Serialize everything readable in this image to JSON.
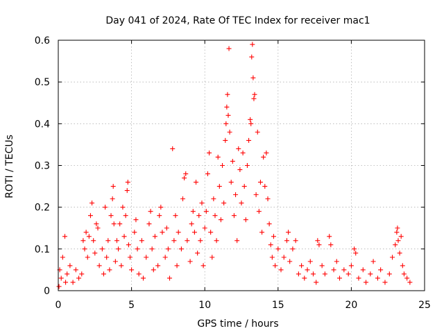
{
  "chart_data": {
    "type": "scatter",
    "title": "Day 041 of 2024, Rate Of TEC Index for receiver mac1",
    "xlabel": "GPS time / hours",
    "ylabel": "ROTI / TECUs",
    "xlim": [
      0,
      25
    ],
    "ylim": [
      0,
      0.6
    ],
    "xticks": [
      0,
      5,
      10,
      15,
      20,
      25
    ],
    "yticks": [
      0,
      0.1,
      0.2,
      0.3,
      0.4,
      0.5,
      0.6
    ],
    "xtick_labels": [
      "0",
      "5",
      "10",
      "15",
      "20",
      "25"
    ],
    "ytick_labels": [
      "0",
      "0.1",
      "0.2",
      "0.3",
      "0.4",
      "0.5",
      "0.6"
    ],
    "grid": true,
    "marker": "+",
    "color": "#ff0000",
    "series": [
      {
        "name": "ROTI",
        "points": [
          [
            0.05,
            0.01
          ],
          [
            0.1,
            0.05
          ],
          [
            0.2,
            0.03
          ],
          [
            0.3,
            0.08
          ],
          [
            0.45,
            0.13
          ],
          [
            0.5,
            0.02
          ],
          [
            0.6,
            0.04
          ],
          [
            0.8,
            0.06
          ],
          [
            1.0,
            0.02
          ],
          [
            1.2,
            0.05
          ],
          [
            1.4,
            0.03
          ],
          [
            1.6,
            0.04
          ],
          [
            1.7,
            0.12
          ],
          [
            1.8,
            0.1
          ],
          [
            1.9,
            0.14
          ],
          [
            2.0,
            0.08
          ],
          [
            2.1,
            0.13
          ],
          [
            2.2,
            0.18
          ],
          [
            2.3,
            0.21
          ],
          [
            2.4,
            0.12
          ],
          [
            2.5,
            0.09
          ],
          [
            2.6,
            0.16
          ],
          [
            2.7,
            0.15
          ],
          [
            2.8,
            0.06
          ],
          [
            3.0,
            0.1
          ],
          [
            3.1,
            0.04
          ],
          [
            3.2,
            0.2
          ],
          [
            3.3,
            0.08
          ],
          [
            3.4,
            0.12
          ],
          [
            3.5,
            0.05
          ],
          [
            3.6,
            0.18
          ],
          [
            3.7,
            0.22
          ],
          [
            3.75,
            0.25
          ],
          [
            3.8,
            0.16
          ],
          [
            3.9,
            0.07
          ],
          [
            4.0,
            0.12
          ],
          [
            4.1,
            0.1
          ],
          [
            4.2,
            0.16
          ],
          [
            4.3,
            0.06
          ],
          [
            4.4,
            0.2
          ],
          [
            4.5,
            0.13
          ],
          [
            4.6,
            0.18
          ],
          [
            4.7,
            0.24
          ],
          [
            4.75,
            0.26
          ],
          [
            4.8,
            0.11
          ],
          [
            4.9,
            0.08
          ],
          [
            5.0,
            0.05
          ],
          [
            5.2,
            0.14
          ],
          [
            5.3,
            0.17
          ],
          [
            5.4,
            0.1
          ],
          [
            5.5,
            0.04
          ],
          [
            5.7,
            0.12
          ],
          [
            5.8,
            0.03
          ],
          [
            6.0,
            0.08
          ],
          [
            6.2,
            0.16
          ],
          [
            6.3,
            0.19
          ],
          [
            6.4,
            0.1
          ],
          [
            6.5,
            0.05
          ],
          [
            6.6,
            0.13
          ],
          [
            6.8,
            0.06
          ],
          [
            6.9,
            0.18
          ],
          [
            7.0,
            0.2
          ],
          [
            7.1,
            0.14
          ],
          [
            7.3,
            0.08
          ],
          [
            7.4,
            0.15
          ],
          [
            7.5,
            0.1
          ],
          [
            7.6,
            0.03
          ],
          [
            7.8,
            0.34
          ],
          [
            7.9,
            0.12
          ],
          [
            8.0,
            0.18
          ],
          [
            8.1,
            0.06
          ],
          [
            8.2,
            0.14
          ],
          [
            8.4,
            0.1
          ],
          [
            8.5,
            0.22
          ],
          [
            8.6,
            0.27
          ],
          [
            8.7,
            0.28
          ],
          [
            8.8,
            0.12
          ],
          [
            9.0,
            0.07
          ],
          [
            9.1,
            0.16
          ],
          [
            9.2,
            0.19
          ],
          [
            9.3,
            0.14
          ],
          [
            9.4,
            0.26
          ],
          [
            9.5,
            0.09
          ],
          [
            9.6,
            0.18
          ],
          [
            9.7,
            0.12
          ],
          [
            9.8,
            0.21
          ],
          [
            9.9,
            0.06
          ],
          [
            10.0,
            0.15
          ],
          [
            10.1,
            0.19
          ],
          [
            10.2,
            0.28
          ],
          [
            10.3,
            0.33
          ],
          [
            10.4,
            0.14
          ],
          [
            10.5,
            0.08
          ],
          [
            10.6,
            0.22
          ],
          [
            10.7,
            0.18
          ],
          [
            10.8,
            0.12
          ],
          [
            10.9,
            0.32
          ],
          [
            11.0,
            0.25
          ],
          [
            11.1,
            0.17
          ],
          [
            11.2,
            0.3
          ],
          [
            11.3,
            0.21
          ],
          [
            11.4,
            0.36
          ],
          [
            11.45,
            0.4
          ],
          [
            11.5,
            0.44
          ],
          [
            11.55,
            0.47
          ],
          [
            11.6,
            0.42
          ],
          [
            11.65,
            0.58
          ],
          [
            11.7,
            0.38
          ],
          [
            11.8,
            0.26
          ],
          [
            11.9,
            0.31
          ],
          [
            12.0,
            0.18
          ],
          [
            12.1,
            0.23
          ],
          [
            12.2,
            0.12
          ],
          [
            12.3,
            0.34
          ],
          [
            12.4,
            0.29
          ],
          [
            12.5,
            0.21
          ],
          [
            12.6,
            0.33
          ],
          [
            12.7,
            0.25
          ],
          [
            12.8,
            0.17
          ],
          [
            12.9,
            0.3
          ],
          [
            13.0,
            0.36
          ],
          [
            13.1,
            0.41
          ],
          [
            13.15,
            0.4
          ],
          [
            13.2,
            0.56
          ],
          [
            13.25,
            0.59
          ],
          [
            13.3,
            0.51
          ],
          [
            13.35,
            0.46
          ],
          [
            13.4,
            0.47
          ],
          [
            13.5,
            0.23
          ],
          [
            13.6,
            0.38
          ],
          [
            13.7,
            0.19
          ],
          [
            13.8,
            0.26
          ],
          [
            13.9,
            0.14
          ],
          [
            14.0,
            0.32
          ],
          [
            14.1,
            0.25
          ],
          [
            14.2,
            0.33
          ],
          [
            14.3,
            0.22
          ],
          [
            14.4,
            0.16
          ],
          [
            14.5,
            0.11
          ],
          [
            14.6,
            0.08
          ],
          [
            14.7,
            0.13
          ],
          [
            14.8,
            0.06
          ],
          [
            15.0,
            0.1
          ],
          [
            15.2,
            0.05
          ],
          [
            15.4,
            0.08
          ],
          [
            15.6,
            0.12
          ],
          [
            15.7,
            0.14
          ],
          [
            15.8,
            0.07
          ],
          [
            16.0,
            0.1
          ],
          [
            16.2,
            0.12
          ],
          [
            16.4,
            0.04
          ],
          [
            16.6,
            0.06
          ],
          [
            16.8,
            0.03
          ],
          [
            17.0,
            0.05
          ],
          [
            17.2,
            0.07
          ],
          [
            17.4,
            0.04
          ],
          [
            17.6,
            0.02
          ],
          [
            17.7,
            0.12
          ],
          [
            17.8,
            0.11
          ],
          [
            18.0,
            0.06
          ],
          [
            18.2,
            0.04
          ],
          [
            18.5,
            0.13
          ],
          [
            18.6,
            0.11
          ],
          [
            18.8,
            0.05
          ],
          [
            19.0,
            0.07
          ],
          [
            19.2,
            0.03
          ],
          [
            19.5,
            0.05
          ],
          [
            19.8,
            0.04
          ],
          [
            20.0,
            0.06
          ],
          [
            20.2,
            0.1
          ],
          [
            20.3,
            0.09
          ],
          [
            20.5,
            0.03
          ],
          [
            20.8,
            0.05
          ],
          [
            21.0,
            0.02
          ],
          [
            21.3,
            0.04
          ],
          [
            21.5,
            0.07
          ],
          [
            21.8,
            0.03
          ],
          [
            22.0,
            0.05
          ],
          [
            22.3,
            0.02
          ],
          [
            22.6,
            0.04
          ],
          [
            22.8,
            0.08
          ],
          [
            23.0,
            0.11
          ],
          [
            23.1,
            0.14
          ],
          [
            23.15,
            0.15
          ],
          [
            23.2,
            0.12
          ],
          [
            23.3,
            0.09
          ],
          [
            23.4,
            0.13
          ],
          [
            23.5,
            0.06
          ],
          [
            23.6,
            0.04
          ],
          [
            23.8,
            0.03
          ],
          [
            24.0,
            0.02
          ]
        ]
      }
    ]
  }
}
